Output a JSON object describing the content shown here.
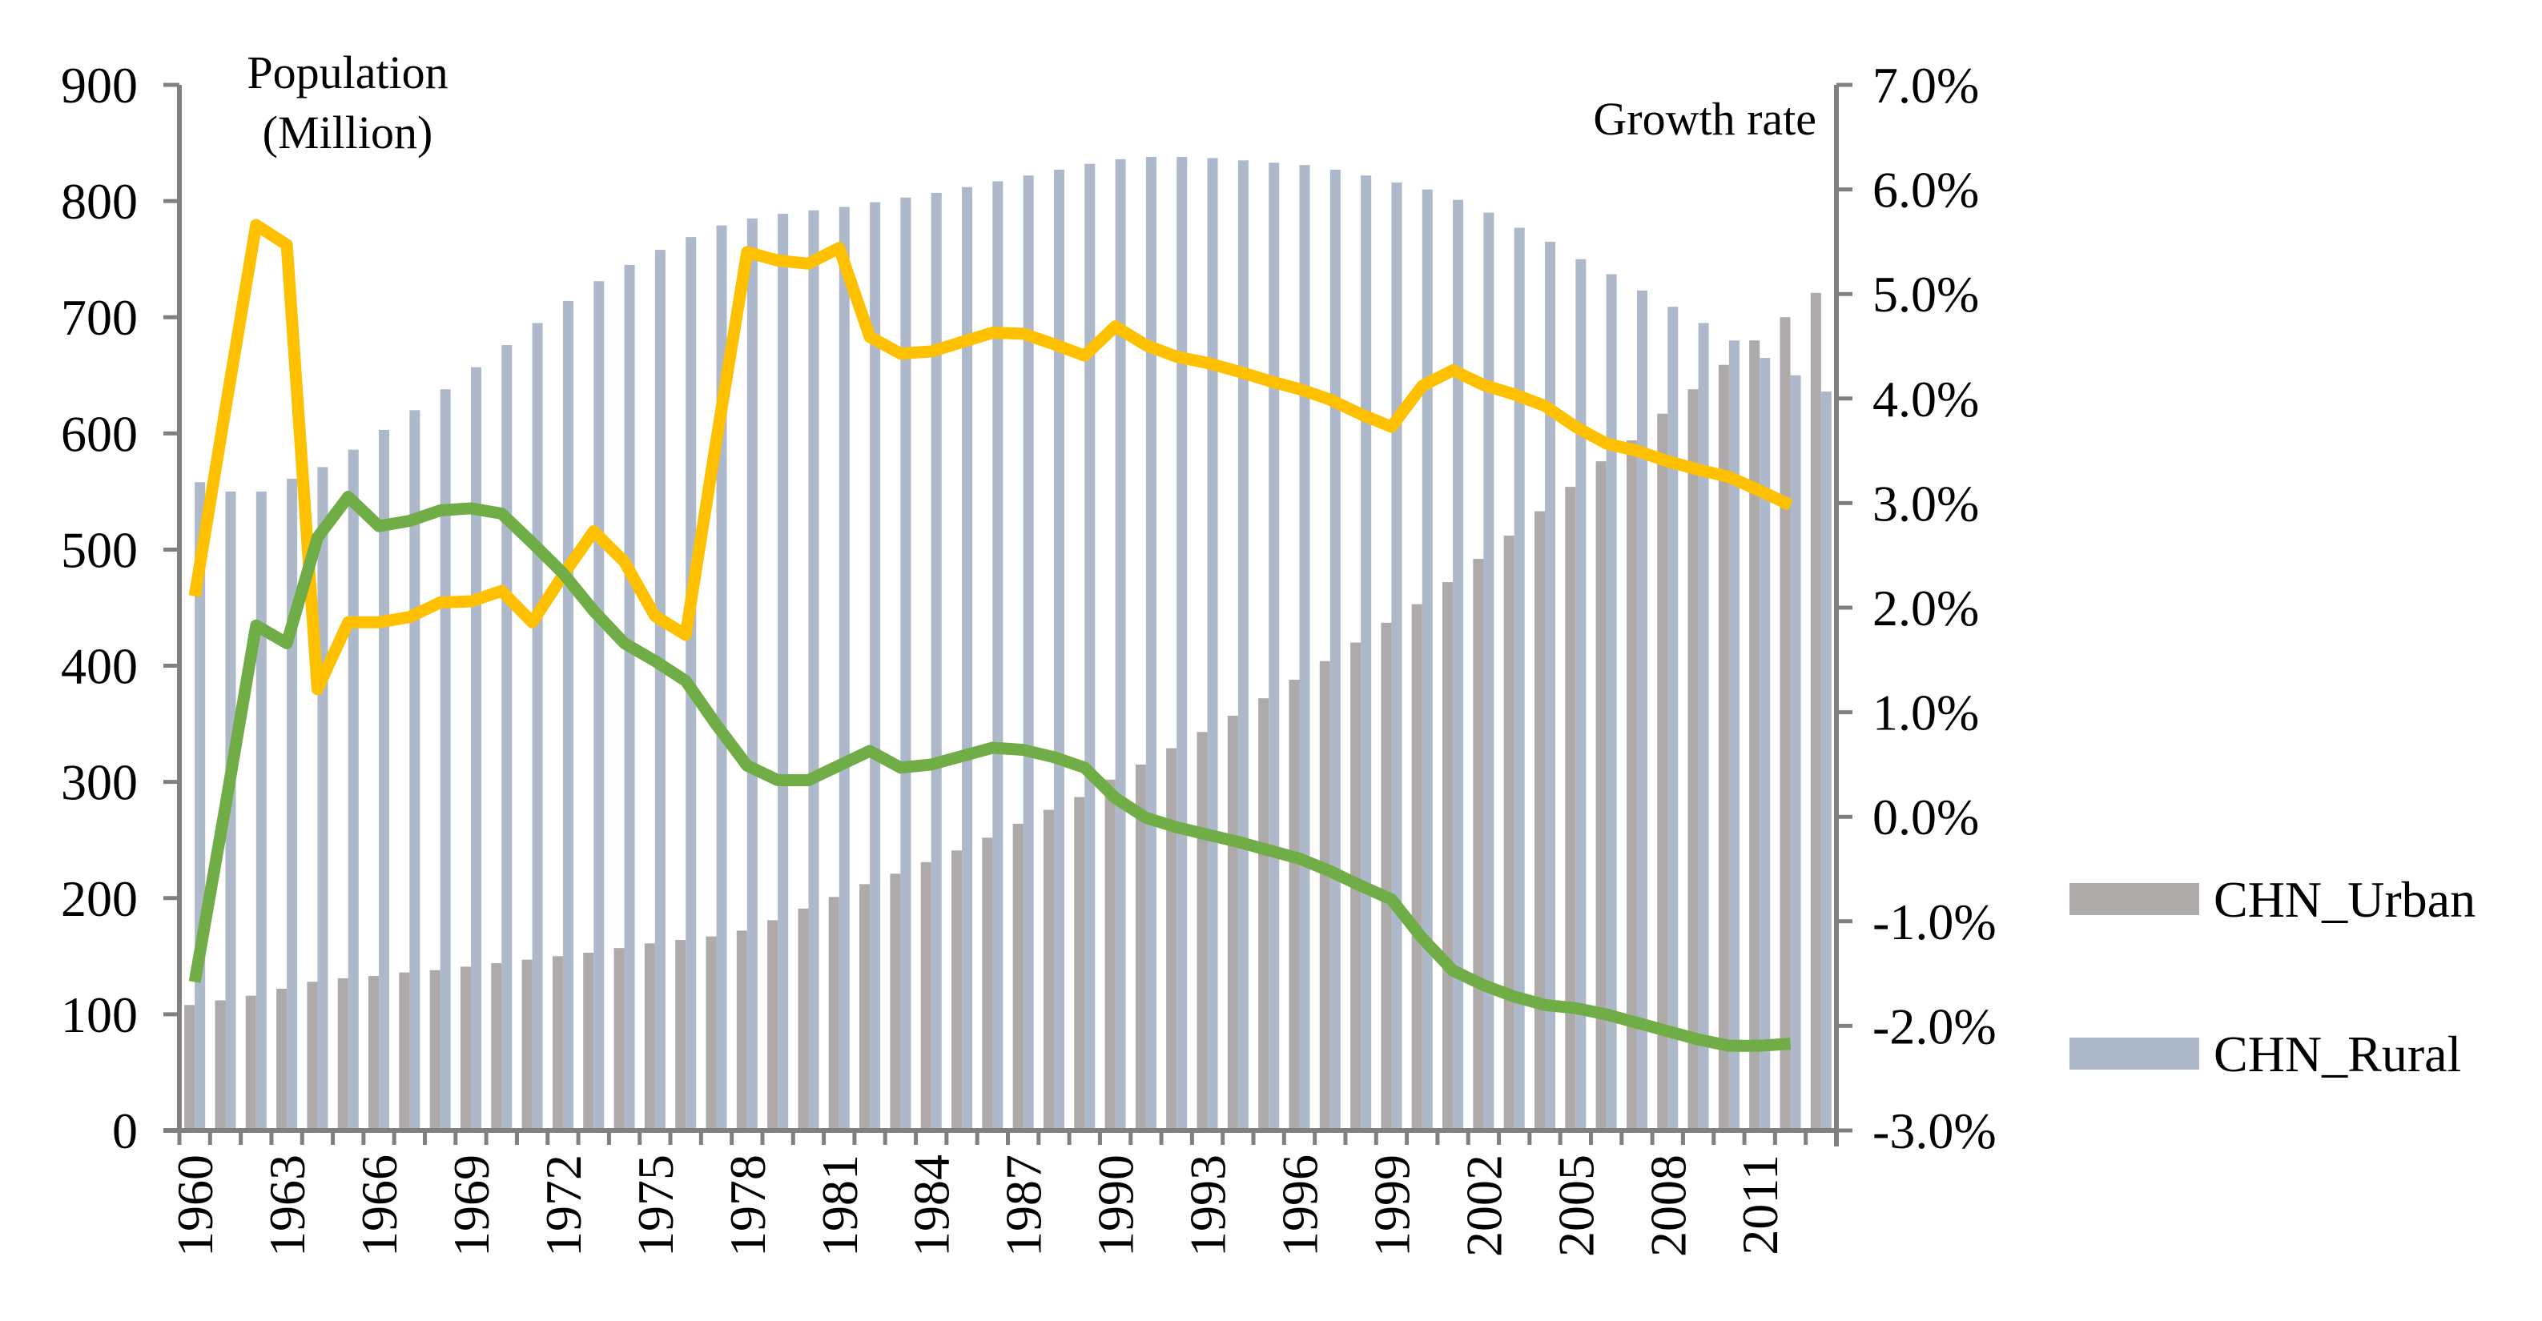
{
  "chart_data": {
    "type": "bar+line",
    "annotations": {
      "left_axis_title_line1": "Population",
      "left_axis_title_line2": "(Million)",
      "right_axis_title": "Growth rate"
    },
    "left_axis": {
      "ylim": [
        0,
        900
      ],
      "ticks": [
        "0",
        "100",
        "200",
        "300",
        "400",
        "500",
        "600",
        "700",
        "800",
        "900"
      ]
    },
    "right_axis": {
      "ylim": [
        -3.0,
        7.0
      ],
      "ticks": [
        "-3.0%",
        "-2.0%",
        "-1.0%",
        "0.0%",
        "1.0%",
        "2.0%",
        "3.0%",
        "4.0%",
        "5.0%",
        "6.0%",
        "7.0%"
      ]
    },
    "x_tick_labels": [
      "1960",
      "1963",
      "1966",
      "1969",
      "1972",
      "1975",
      "1978",
      "1981",
      "1984",
      "1987",
      "1990",
      "1993",
      "1996",
      "1999",
      "2002",
      "2005",
      "2008",
      "2011"
    ],
    "years": [
      1960,
      1961,
      1962,
      1963,
      1964,
      1965,
      1966,
      1967,
      1968,
      1969,
      1970,
      1971,
      1972,
      1973,
      1974,
      1975,
      1976,
      1977,
      1978,
      1979,
      1980,
      1981,
      1982,
      1983,
      1984,
      1985,
      1986,
      1987,
      1988,
      1989,
      1990,
      1991,
      1992,
      1993,
      1994,
      1995,
      1996,
      1997,
      1998,
      1999,
      2000,
      2001,
      2002,
      2003,
      2004,
      2005,
      2006,
      2007,
      2008,
      2009,
      2010,
      2011,
      2012,
      2013
    ],
    "legend_position": "right",
    "bar_series": [
      {
        "name": "CHN_Urban",
        "color": "#aeaaaa",
        "values": [
          108,
          112,
          116,
          122,
          128,
          131,
          133,
          136,
          138,
          141,
          144,
          147,
          150,
          153,
          157,
          161,
          164,
          167,
          172,
          181,
          191,
          201,
          212,
          221,
          231,
          241,
          252,
          264,
          276,
          287,
          302,
          315,
          329,
          343,
          357,
          372,
          388,
          404,
          420,
          437,
          453,
          472,
          492,
          512,
          533,
          554,
          576,
          594,
          617,
          638,
          659,
          680,
          700,
          721
        ]
      },
      {
        "name": "CHN_Rural",
        "color": "#adb9ca",
        "values": [
          558,
          550,
          550,
          561,
          571,
          586,
          603,
          620,
          638,
          657,
          676,
          695,
          714,
          731,
          745,
          758,
          769,
          779,
          785,
          789,
          792,
          795,
          799,
          803,
          807,
          812,
          817,
          822,
          827,
          832,
          836,
          838,
          838,
          837,
          835,
          833,
          831,
          827,
          822,
          816,
          810,
          801,
          790,
          777,
          765,
          750,
          737,
          723,
          709,
          695,
          680,
          665,
          650,
          636
        ]
      }
    ],
    "line_series": [
      {
        "color": "#ffc000",
        "axis": "right",
        "values": [
          2.11,
          3.9,
          5.66,
          5.47,
          1.22,
          1.86,
          1.86,
          1.91,
          2.05,
          2.06,
          2.16,
          1.86,
          2.31,
          2.73,
          2.44,
          1.92,
          1.74,
          3.6,
          5.4,
          5.32,
          5.29,
          5.44,
          4.59,
          4.43,
          4.45,
          4.54,
          4.63,
          4.62,
          4.52,
          4.41,
          4.69,
          4.51,
          4.4,
          4.34,
          4.26,
          4.17,
          4.09,
          3.99,
          3.85,
          3.73,
          4.12,
          4.27,
          4.13,
          4.04,
          3.93,
          3.73,
          3.57,
          3.5,
          3.4,
          3.32,
          3.25,
          3.12,
          2.98
        ]
      },
      {
        "color": "#70ad47",
        "axis": "right",
        "values": [
          -1.58,
          0.1,
          1.83,
          1.66,
          2.67,
          3.06,
          2.78,
          2.83,
          2.93,
          2.95,
          2.9,
          2.62,
          2.33,
          1.97,
          1.66,
          1.49,
          1.3,
          0.88,
          0.49,
          0.35,
          0.35,
          0.49,
          0.63,
          0.47,
          0.5,
          0.58,
          0.66,
          0.64,
          0.57,
          0.47,
          0.18,
          -0.01,
          -0.1,
          -0.17,
          -0.24,
          -0.32,
          -0.4,
          -0.52,
          -0.66,
          -0.79,
          -1.16,
          -1.47,
          -1.61,
          -1.72,
          -1.8,
          -1.83,
          -1.89,
          -1.97,
          -2.05,
          -2.13,
          -2.19,
          -2.19,
          -2.17
        ]
      }
    ],
    "axis_color": "#808080"
  }
}
